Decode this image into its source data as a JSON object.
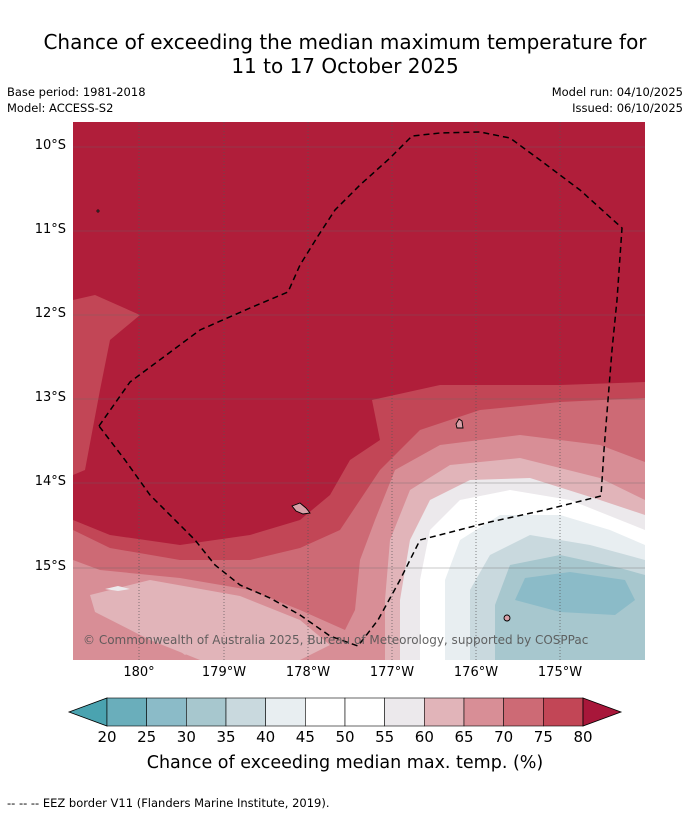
{
  "title_line1": "Chance of exceeding the median maximum temperature for",
  "title_line2": "11 to 17 October 2025",
  "meta": {
    "base_period": "Base period: 1981-2018",
    "model": "Model: ACCESS-S2",
    "model_run": "Model run: 04/10/2025",
    "issued": "Issued: 06/10/2025"
  },
  "map": {
    "lat_labels": [
      "10°S",
      "11°S",
      "12°S",
      "13°S",
      "14°S",
      "15°S"
    ],
    "lon_labels": [
      "180°",
      "179°W",
      "178°W",
      "177°W",
      "176°W",
      "175°W"
    ],
    "copyright": "© Commonwealth of Australia 2025, Bureau of Meteorology, supported by COSPPac",
    "colors": {
      "c80": "#b01e3a",
      "c75": "#c24656",
      "c70": "#cd6a75",
      "c65": "#d88e96",
      "c60": "#e1b4b9",
      "c55": "#ece9ec",
      "c50": "#ffffff",
      "c40": "#e8eef1",
      "c35": "#c9d9de",
      "c30": "#a7c7ce",
      "c25": "#8bbbc8"
    }
  },
  "colorbar": {
    "ticks": [
      "20",
      "25",
      "30",
      "35",
      "40",
      "45",
      "50",
      "55",
      "60",
      "65",
      "70",
      "75",
      "80"
    ],
    "label": "Chance of exceeding median max. temp. (%)",
    "colors": [
      "#6aaebb",
      "#8bbbc8",
      "#a7c7ce",
      "#c9d9de",
      "#e8eef1",
      "#ffffff",
      "#ffffff",
      "#ece9ec",
      "#e1b4b9",
      "#d88e96",
      "#cd6a75",
      "#c24656"
    ],
    "low_color": "#4aa3b0",
    "high_color": "#a8173a"
  },
  "footnote": "--  --  -- EEZ border V11 (Flanders Marine Institute, 2019)."
}
